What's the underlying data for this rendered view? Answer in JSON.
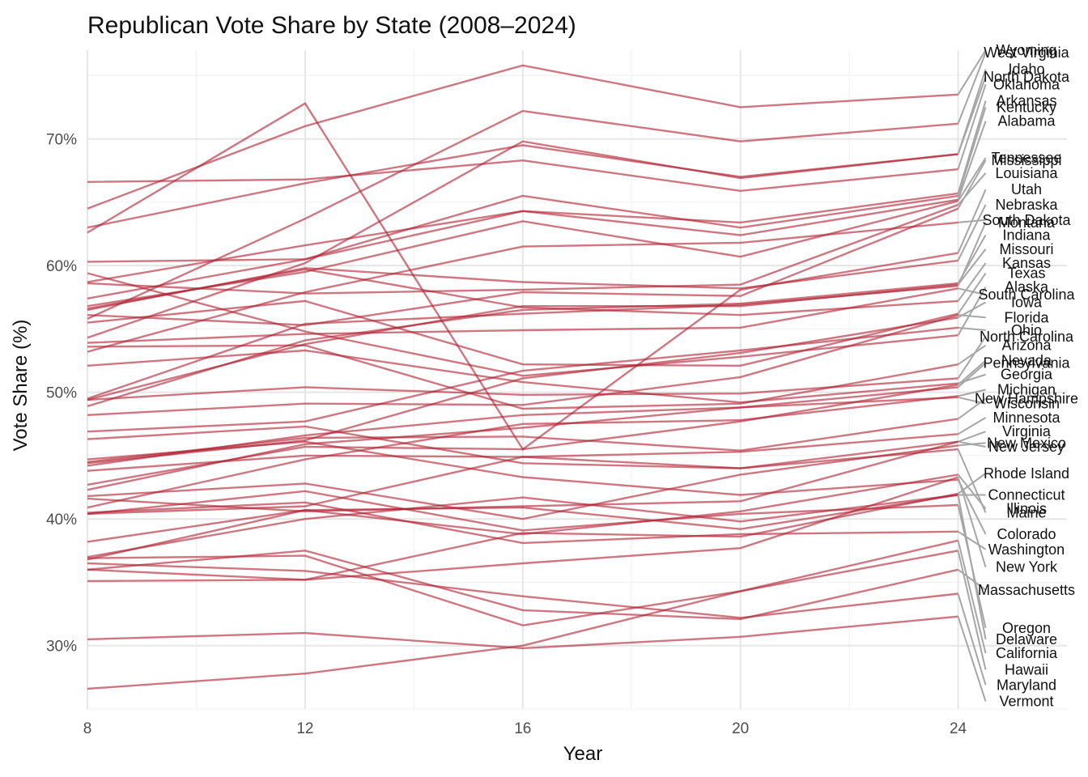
{
  "chart_data": {
    "type": "line",
    "title": "Republican Vote Share by State (2008–2024)",
    "xlabel": "Year",
    "ylabel": "Vote Share (%)",
    "x": [
      8,
      12,
      16,
      20,
      24
    ],
    "xlim": [
      8,
      26
    ],
    "x_ticks": [
      8,
      12,
      16,
      20,
      24
    ],
    "x_tick_labels": [
      "8",
      "12",
      "16",
      "20",
      "24"
    ],
    "ylim": [
      25,
      77
    ],
    "y_ticks": [
      30,
      40,
      50,
      60,
      70
    ],
    "y_tick_labels": [
      "30%",
      "40%",
      "50%",
      "60%",
      "70%"
    ],
    "grid": true,
    "legend": "none (direct labels at right end)",
    "line_color": "#b22234",
    "leader_color": "#a6a6a6",
    "series": [
      {
        "name": "Wyoming",
        "values": [
          64.5,
          71.0,
          75.8,
          72.5,
          73.5
        ],
        "label_y": 77.0
      },
      {
        "name": "West Virginia",
        "values": [
          55.8,
          63.7,
          72.2,
          69.8,
          71.2
        ],
        "label_y": 76.8
      },
      {
        "name": "Idaho",
        "values": [
          63.0,
          66.5,
          69.5,
          67.0,
          68.8
        ],
        "label_y": 75.5
      },
      {
        "name": "North Dakota",
        "values": [
          54.3,
          60.2,
          69.8,
          66.9,
          68.8
        ],
        "label_y": 74.9
      },
      {
        "name": "Oklahoma",
        "values": [
          66.6,
          66.8,
          68.3,
          65.9,
          67.6
        ],
        "label_y": 74.3
      },
      {
        "name": "Arkansas",
        "values": [
          58.7,
          61.6,
          64.3,
          63.4,
          65.7
        ],
        "label_y": 73.0
      },
      {
        "name": "Kentucky",
        "values": [
          57.4,
          60.5,
          65.5,
          63.0,
          65.5
        ],
        "label_y": 72.5
      },
      {
        "name": "Alabama",
        "values": [
          60.3,
          60.5,
          64.3,
          62.4,
          65.2
        ],
        "label_y": 71.4
      },
      {
        "name": "Tennessee",
        "values": [
          56.8,
          59.5,
          63.5,
          60.7,
          65.1
        ],
        "label_y": 68.5
      },
      {
        "name": "Mississippi",
        "values": [
          56.1,
          55.3,
          57.9,
          57.6,
          64.5
        ],
        "label_y": 68.3
      },
      {
        "name": "Louisiana",
        "values": [
          58.6,
          57.8,
          58.1,
          58.5,
          64.8
        ],
        "label_y": 67.3
      },
      {
        "name": "Utah",
        "values": [
          62.6,
          72.8,
          45.5,
          58.1,
          61.0
        ],
        "label_y": 66.0
      },
      {
        "name": "Nebraska",
        "values": [
          56.5,
          59.8,
          58.7,
          58.2,
          60.4
        ],
        "label_y": 64.8
      },
      {
        "name": "South Dakota",
        "values": [
          53.2,
          57.9,
          61.5,
          61.8,
          63.4
        ],
        "label_y": 63.6
      },
      {
        "name": "Montana",
        "values": [
          49.5,
          55.4,
          56.2,
          56.9,
          58.4
        ],
        "label_y": 63.4
      },
      {
        "name": "Indiana",
        "values": [
          48.9,
          54.1,
          56.5,
          57.0,
          58.6
        ],
        "label_y": 62.4
      },
      {
        "name": "Missouri",
        "values": [
          49.4,
          53.8,
          56.8,
          56.8,
          58.5
        ],
        "label_y": 61.3
      },
      {
        "name": "Kansas",
        "values": [
          56.6,
          59.7,
          56.7,
          56.1,
          57.2
        ],
        "label_y": 60.2
      },
      {
        "name": "Texas",
        "values": [
          55.5,
          57.2,
          52.2,
          52.1,
          56.2
        ],
        "label_y": 59.4
      },
      {
        "name": "Alaska",
        "values": [
          59.4,
          54.8,
          51.3,
          52.8,
          54.5
        ],
        "label_y": 58.3
      },
      {
        "name": "South Carolina",
        "values": [
          53.9,
          54.6,
          54.9,
          55.1,
          58.2
        ],
        "label_y": 57.7
      },
      {
        "name": "Iowa",
        "values": [
          44.4,
          46.2,
          51.1,
          53.1,
          55.9
        ],
        "label_y": 57.1
      },
      {
        "name": "Florida",
        "values": [
          48.2,
          49.1,
          49.0,
          51.2,
          56.1
        ],
        "label_y": 55.9
      },
      {
        "name": "Ohio",
        "values": [
          46.9,
          47.7,
          51.7,
          53.3,
          55.1
        ],
        "label_y": 54.9
      },
      {
        "name": "North Carolina",
        "values": [
          49.4,
          50.4,
          49.8,
          49.9,
          51.1
        ],
        "label_y": 54.4
      },
      {
        "name": "Arizona",
        "values": [
          53.6,
          53.7,
          48.7,
          49.1,
          52.2
        ],
        "label_y": 53.7
      },
      {
        "name": "Nevada",
        "values": [
          42.7,
          45.7,
          45.5,
          47.7,
          50.6
        ],
        "label_y": 52.5
      },
      {
        "name": "Pennsylvania",
        "values": [
          44.2,
          46.6,
          48.2,
          48.8,
          50.4
        ],
        "label_y": 52.3
      },
      {
        "name": "Georgia",
        "values": [
          52.1,
          53.3,
          50.8,
          49.2,
          50.7
        ],
        "label_y": 51.4
      },
      {
        "name": "Michigan",
        "values": [
          40.9,
          44.7,
          47.5,
          47.8,
          49.7
        ],
        "label_y": 50.2
      },
      {
        "name": "New Hampshire",
        "values": [
          44.5,
          46.4,
          46.5,
          45.4,
          47.9
        ],
        "label_y": 49.5
      },
      {
        "name": "Wisconsin",
        "values": [
          42.3,
          45.9,
          47.2,
          48.8,
          49.6
        ],
        "label_y": 49.1
      },
      {
        "name": "Minnesota",
        "values": [
          43.8,
          45.0,
          44.9,
          45.3,
          46.7
        ],
        "label_y": 48.0
      },
      {
        "name": "Virginia",
        "values": [
          46.3,
          47.3,
          44.4,
          44.0,
          46.1
        ],
        "label_y": 46.9
      },
      {
        "name": "New Mexico",
        "values": [
          41.8,
          42.8,
          40.0,
          43.5,
          45.8
        ],
        "label_y": 46.0
      },
      {
        "name": "New Jersey",
        "values": [
          41.6,
          40.6,
          41.0,
          41.4,
          46.1
        ],
        "label_y": 45.7
      },
      {
        "name": "Rhode Island",
        "values": [
          35.1,
          35.2,
          38.9,
          38.6,
          42.0
        ],
        "label_y": 43.6
      },
      {
        "name": "Connecticut",
        "values": [
          38.2,
          40.7,
          40.9,
          39.2,
          41.9
        ],
        "label_y": 41.9
      },
      {
        "name": "Illinois",
        "values": [
          36.8,
          40.7,
          38.8,
          40.6,
          43.5
        ],
        "label_y": 40.8
      },
      {
        "name": "Maine",
        "values": [
          40.4,
          41.0,
          44.9,
          44.0,
          45.5
        ],
        "label_y": 40.5
      },
      {
        "name": "Colorado",
        "values": [
          44.7,
          46.1,
          43.3,
          41.9,
          43.1
        ],
        "label_y": 38.8
      },
      {
        "name": "Washington",
        "values": [
          40.5,
          41.3,
          38.1,
          38.8,
          39.0
        ],
        "label_y": 37.6
      },
      {
        "name": "New York",
        "values": [
          36.0,
          35.2,
          36.5,
          37.7,
          43.3
        ],
        "label_y": 36.2
      },
      {
        "name": "Massachusetts",
        "values": [
          36.0,
          37.5,
          32.8,
          32.1,
          36.0
        ],
        "label_y": 34.4
      },
      {
        "name": "Oregon",
        "values": [
          40.4,
          42.2,
          39.1,
          40.4,
          41.1
        ],
        "label_y": 31.4
      },
      {
        "name": "Delaware",
        "values": [
          37.0,
          40.0,
          41.7,
          39.8,
          41.9
        ],
        "label_y": 30.5
      },
      {
        "name": "California",
        "values": [
          36.9,
          37.1,
          31.6,
          34.3,
          38.3
        ],
        "label_y": 29.4
      },
      {
        "name": "Hawaii",
        "values": [
          26.6,
          27.8,
          30.0,
          34.3,
          37.5
        ],
        "label_y": 28.1
      },
      {
        "name": "Maryland",
        "values": [
          36.5,
          35.9,
          33.9,
          32.2,
          34.1
        ],
        "label_y": 26.9
      },
      {
        "name": "Vermont",
        "values": [
          30.5,
          31.0,
          29.8,
          30.7,
          32.3
        ],
        "label_y": 25.6
      }
    ]
  }
}
